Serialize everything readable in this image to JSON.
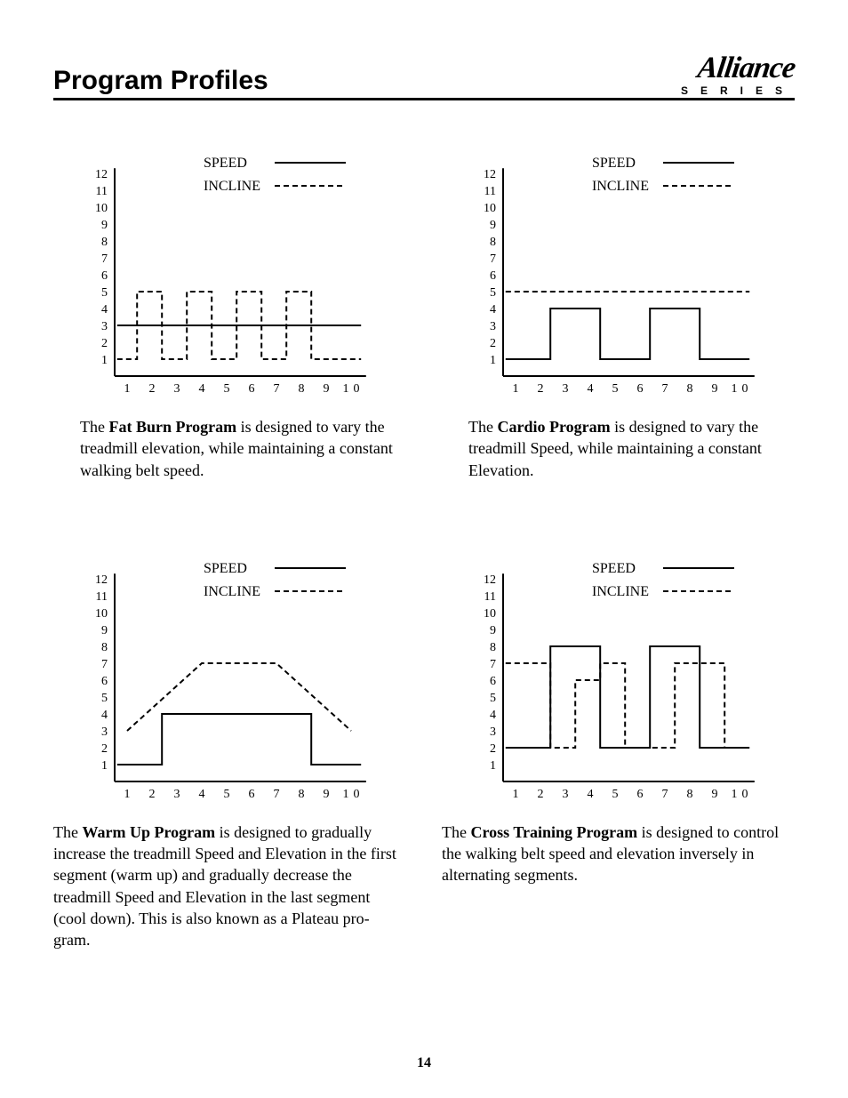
{
  "header": {
    "title": "Program Profiles",
    "brand_top": "Alliance",
    "brand_sub": "SERIES"
  },
  "page_number": "14",
  "legend": {
    "speed": "SPEED",
    "incline": "INCLINE"
  },
  "axes": {
    "x_ticks": [
      1,
      2,
      3,
      4,
      5,
      6,
      7,
      8,
      9,
      10
    ],
    "y_ticks": [
      1,
      2,
      3,
      4,
      5,
      6,
      7,
      8,
      9,
      10,
      11,
      12
    ],
    "line_color": "#000000",
    "line_width": 2,
    "dash": "6,4",
    "tick_fontsize": 14
  },
  "charts": {
    "fat_burn": {
      "type": "step-line",
      "speed": [
        3,
        3,
        3,
        3,
        3,
        3,
        3,
        3,
        3,
        3
      ],
      "incline": [
        1,
        5,
        1,
        5,
        1,
        5,
        1,
        5,
        1,
        1
      ],
      "desc_lead": "The ",
      "desc_bold": "Fat Burn Program",
      "desc_rest": " is designed to vary the treadmill elevation, while maintaining a constant walking belt speed."
    },
    "cardio": {
      "type": "step-line",
      "speed": [
        1,
        1,
        4,
        4,
        1,
        1,
        4,
        4,
        1,
        1
      ],
      "incline": [
        5,
        5,
        5,
        5,
        5,
        5,
        5,
        5,
        5,
        5
      ],
      "desc_lead": "The ",
      "desc_bold": "Cardio Program",
      "desc_rest": " is designed to vary the treadmill Speed, while maintaining a con­stant Elevation."
    },
    "warm_up": {
      "type": "mixed",
      "speed": [
        1,
        1,
        4,
        4,
        4,
        4,
        4,
        4,
        1,
        1
      ],
      "incline_points": [
        [
          1,
          3
        ],
        [
          4,
          7
        ],
        [
          7,
          7
        ],
        [
          10,
          3
        ]
      ],
      "desc_lead": "The ",
      "desc_bold": "Warm Up Program",
      "desc_rest": " is designed to gradually increase the treadmill Speed and Elevation in the first segment (warm up) and gradually decrease the treadmill Speed and Elevation in the last segment (cool down). This is also known as a Plateau pro­gram."
    },
    "cross_training": {
      "type": "step-line",
      "speed": [
        2,
        2,
        8,
        8,
        2,
        2,
        8,
        8,
        2,
        2
      ],
      "incline": [
        7,
        7,
        2,
        6,
        7,
        2,
        2,
        7,
        7,
        2
      ],
      "desc_lead": "The ",
      "desc_bold": "Cross Training Program",
      "desc_rest": " is designed to control the walking belt speed and elevation inversely in alternating segments."
    }
  }
}
